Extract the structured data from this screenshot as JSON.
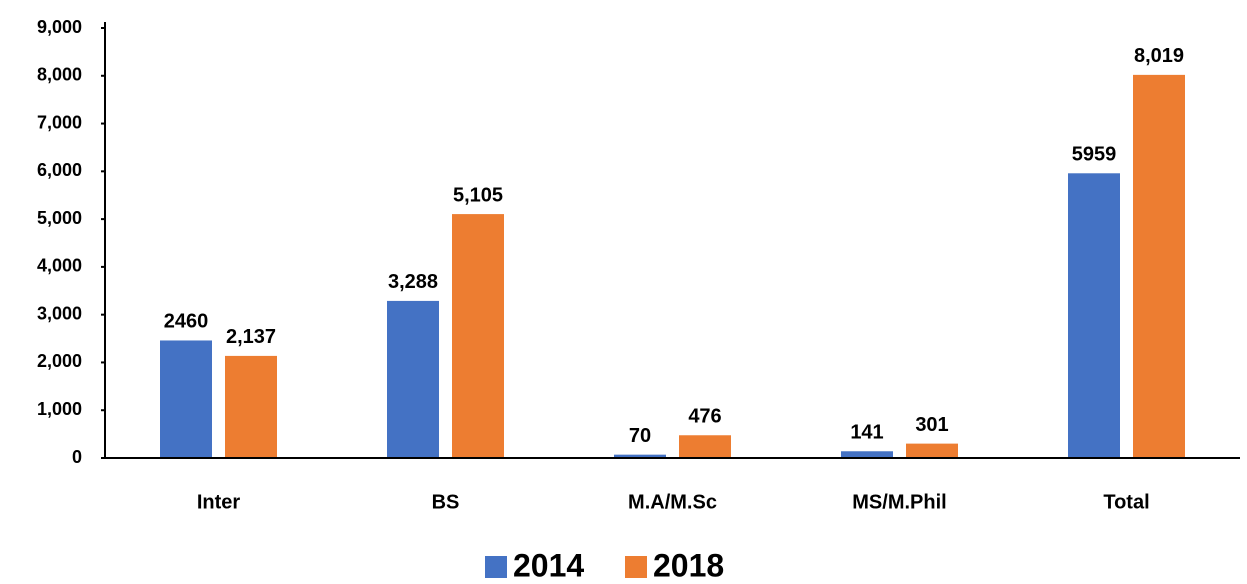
{
  "chart_data": {
    "type": "bar",
    "categories": [
      "Inter",
      "BS",
      "M.A/M.Sc",
      "MS/M.Phil",
      "Total"
    ],
    "series": [
      {
        "name": "2014",
        "color": "#4472c4",
        "values": [
          2460,
          3288,
          70,
          141,
          5959
        ],
        "value_labels": [
          "2460",
          "3,288",
          "70",
          "141",
          "5959"
        ]
      },
      {
        "name": "2018",
        "color": "#ed7d31",
        "values": [
          2137,
          5105,
          476,
          301,
          8019
        ],
        "value_labels": [
          "2,137",
          "5,105",
          "476",
          "301",
          "8,019"
        ]
      }
    ],
    "ylim": [
      0,
      9000
    ],
    "yticks": [
      0,
      {
        "value": 1000,
        "label": "1,000"
      },
      {
        "value": 2000,
        "label": "2,000"
      },
      {
        "value": 3000,
        "label": "3,000"
      },
      {
        "value": 4000,
        "label": "4,000"
      },
      {
        "value": 5000,
        "label": "5,000"
      },
      {
        "value": 6000,
        "label": "6,000"
      },
      {
        "value": 7000,
        "label": "7,000"
      },
      {
        "value": 8000,
        "label": "8,000"
      },
      {
        "value": 9000,
        "label": "9,000"
      }
    ],
    "grid": false,
    "legend": "bottom"
  }
}
